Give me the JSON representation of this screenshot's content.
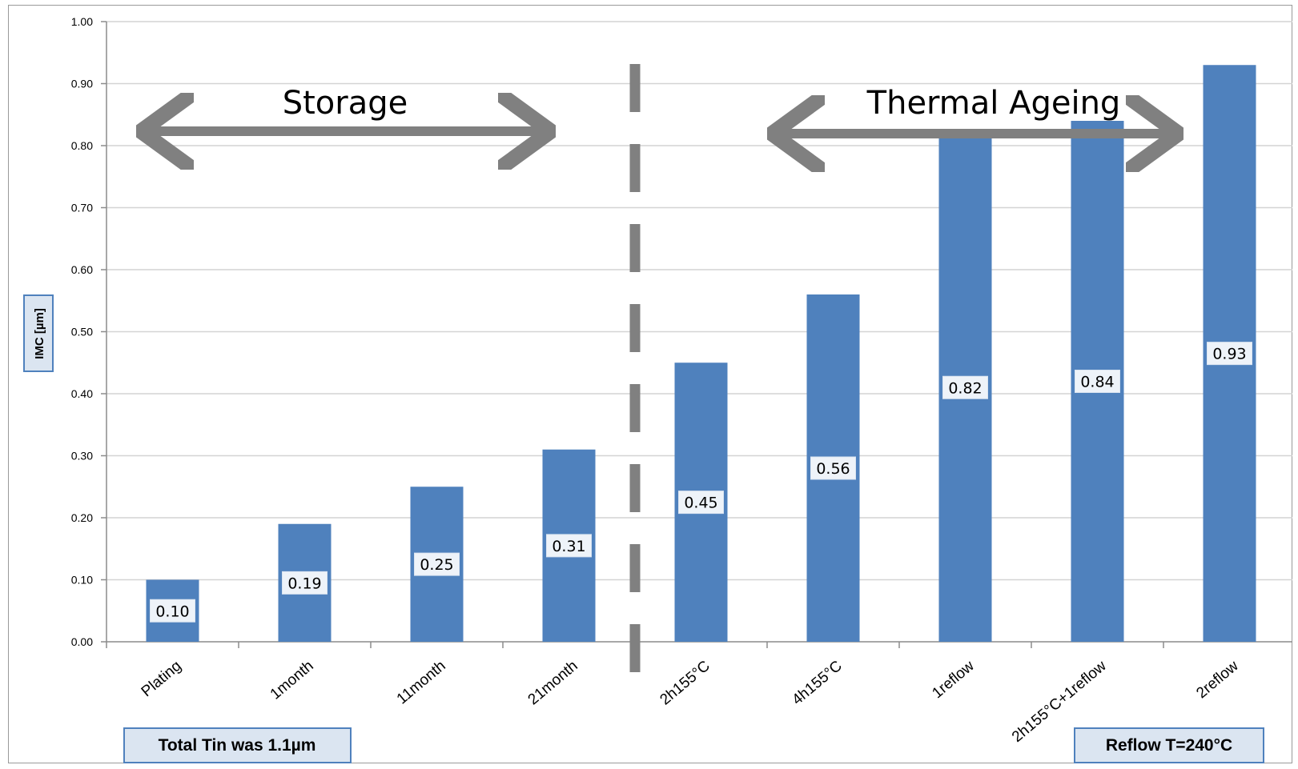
{
  "chart_data": {
    "type": "bar",
    "categories": [
      "Plating",
      "1month",
      "11month",
      "21month",
      "2h155°C",
      "4h155°C",
      "1reflow",
      "2h155°C+1reflow",
      "2reflow"
    ],
    "values": [
      0.1,
      0.19,
      0.25,
      0.31,
      0.45,
      0.56,
      0.82,
      0.84,
      0.93
    ],
    "data_labels": [
      "0.10",
      "0.19",
      "0.25",
      "0.31",
      "0.45",
      "0.56",
      "0.82",
      "0.84",
      "0.93"
    ],
    "ylabel": "IMC [µm]",
    "ylim": [
      0,
      1.0
    ],
    "yticks": [
      "0.00",
      "0.10",
      "0.20",
      "0.30",
      "0.40",
      "0.50",
      "0.60",
      "0.70",
      "0.80",
      "0.90",
      "1.00"
    ],
    "grid": true,
    "bar_color": "#4f81bd",
    "annotations": {
      "storage": "Storage",
      "thermal": "Thermal Ageing",
      "note_left": "Total Tin was 1.1µm",
      "note_right": "Reflow T=240°C"
    },
    "arrow_color": "#808080"
  }
}
